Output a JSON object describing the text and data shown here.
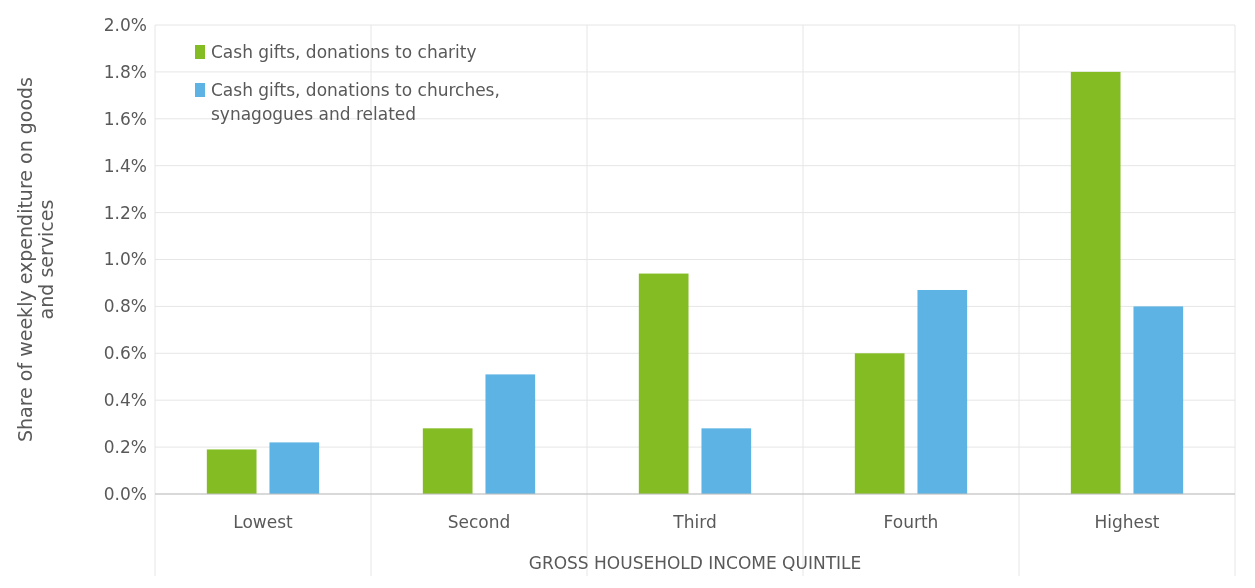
{
  "chart_data": {
    "type": "bar",
    "xlabel": "GROSS HOUSEHOLD INCOME QUINTILE",
    "ylabel": "Share of weekly expenditure on goods and services",
    "categories": [
      "Lowest",
      "Second",
      "Third",
      "Fourth",
      "Highest"
    ],
    "series": [
      {
        "name": "Cash gifts, donations to charity",
        "color": "#84bc24",
        "values": [
          0.19,
          0.28,
          0.94,
          0.6,
          1.8
        ]
      },
      {
        "name": "Cash gifts, donations to churches, synagogues and related",
        "color": "#5db3e3",
        "values": [
          0.22,
          0.51,
          0.28,
          0.87,
          0.8
        ]
      }
    ],
    "ylim": [
      0,
      2
    ],
    "yticks": [
      {
        "value": 0,
        "label": "0.0%"
      },
      {
        "value": 0.2,
        "label": "0.2%"
      },
      {
        "value": 0.4,
        "label": "0.4%"
      },
      {
        "value": 0.6,
        "label": "0.6%"
      },
      {
        "value": 0.8,
        "label": "0.8%"
      },
      {
        "value": 1,
        "label": "1.0%"
      },
      {
        "value": 1.2,
        "label": "1.2%"
      },
      {
        "value": 1.4,
        "label": "1.4%"
      },
      {
        "value": 1.6,
        "label": "1.6%"
      },
      {
        "value": 1.8,
        "label": "1.8%"
      },
      {
        "value": 2,
        "label": "2.0%"
      }
    ],
    "grid": true,
    "legend": "top left"
  }
}
